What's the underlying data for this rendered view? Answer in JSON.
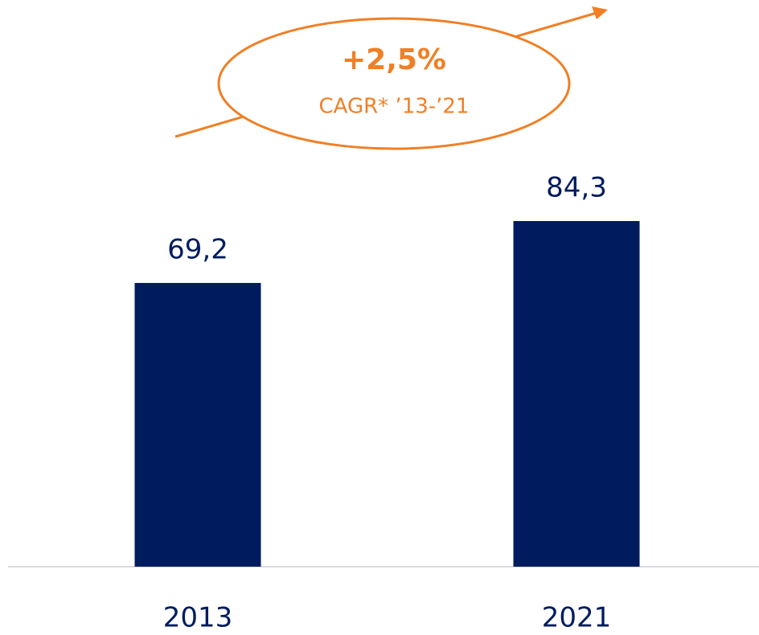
{
  "chart_data": {
    "type": "bar",
    "categories": [
      "2013",
      "2021"
    ],
    "values": [
      69.2,
      84.3
    ],
    "value_labels": [
      "69,2",
      "84,3"
    ],
    "color": "#001c5e",
    "annotations": [
      "+2,5%",
      "CAGR* ’13-’21"
    ],
    "annotation_color": "#f07f25"
  }
}
